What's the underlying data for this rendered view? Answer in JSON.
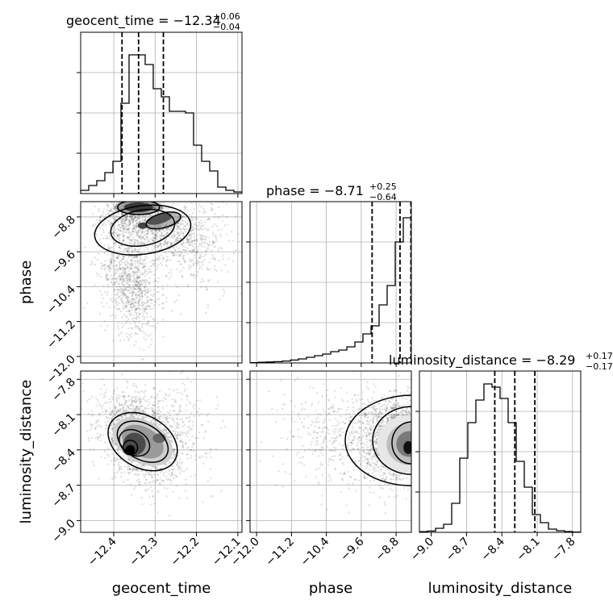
{
  "chart_data": {
    "type": "corner",
    "parameters": [
      "geocent_time",
      "phase",
      "luminosity_distance"
    ],
    "titles": [
      {
        "name": "geocent_time",
        "median": "−12.34",
        "plus": "+0.06",
        "minus": "−0.04"
      },
      {
        "name": "phase",
        "median": "−8.71",
        "plus": "+0.25",
        "minus": "−0.64"
      },
      {
        "name": "luminosity_distance",
        "median": "−8.29",
        "plus": "+0.17",
        "minus": "−0.17"
      }
    ],
    "ranges": {
      "geocent_time": [
        -12.48,
        -12.09
      ],
      "phase": [
        -12.15,
        -8.45
      ],
      "luminosity_distance": [
        -9.1,
        -7.73
      ]
    },
    "ticks": {
      "geocent_time": [
        -12.4,
        -12.3,
        -12.2,
        -12.1
      ],
      "phase": [
        -12.0,
        -11.2,
        -10.4,
        -9.6,
        -8.8
      ],
      "luminosity_distance": [
        -9.0,
        -8.7,
        -8.4,
        -8.1,
        -7.8
      ]
    },
    "tick_labels": {
      "geocent_time": [
        "−12.4",
        "−12.3",
        "−12.2",
        "−12.1"
      ],
      "phase": [
        "−12.0",
        "−11.2",
        "−10.4",
        "−9.6",
        "−8.8"
      ],
      "luminosity_distance": [
        "−9.0",
        "−8.7",
        "−8.4",
        "−8.1",
        "−7.8"
      ]
    },
    "quantiles": {
      "geocent_time": [
        -12.38,
        -12.34,
        -12.28
      ],
      "phase": [
        -9.35,
        -8.71,
        -8.46
      ],
      "luminosity_distance": [
        -8.46,
        -8.29,
        -8.12
      ]
    },
    "histograms": {
      "geocent_time": {
        "start": -12.48,
        "step": 0.0195,
        "counts": [
          0.02,
          0.05,
          0.08,
          0.13,
          0.2,
          0.56,
          0.86,
          0.86,
          0.8,
          0.65,
          0.6,
          0.51,
          0.51,
          0.5,
          0.3,
          0.2,
          0.14,
          0.04,
          0.02,
          0.01,
          0.005
        ]
      },
      "phase": {
        "start": -12.15,
        "step": 0.185,
        "counts": [
          0.002,
          0.004,
          0.006,
          0.008,
          0.012,
          0.018,
          0.025,
          0.035,
          0.045,
          0.055,
          0.07,
          0.08,
          0.1,
          0.13,
          0.18,
          0.23,
          0.36,
          0.48,
          0.75,
          0.9
        ]
      },
      "luminosity_distance": {
        "start": -9.1,
        "step": 0.0685,
        "counts": [
          0.004,
          0.008,
          0.025,
          0.05,
          0.18,
          0.46,
          0.68,
          0.82,
          0.92,
          0.9,
          0.83,
          0.68,
          0.44,
          0.28,
          0.11,
          0.06,
          0.02,
          0.01,
          0.005,
          0.002
        ]
      }
    },
    "scatter_pairs": [
      {
        "x": "geocent_time",
        "y": "phase"
      },
      {
        "x": "geocent_time",
        "y": "luminosity_distance"
      },
      {
        "x": "phase",
        "y": "luminosity_distance"
      }
    ],
    "grid": true,
    "quantile_levels": [
      0.16,
      0.5,
      0.84
    ]
  }
}
